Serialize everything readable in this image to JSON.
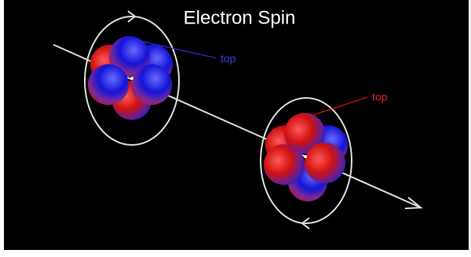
{
  "title": "Electron Spin",
  "labels": [
    "top",
    "top"
  ]
}
